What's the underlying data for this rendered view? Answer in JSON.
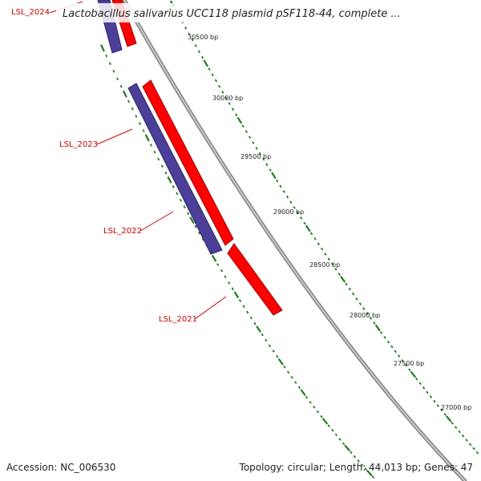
{
  "title": "Lactobacillus salivarius UCC118 plasmid pSF118-44, complete ...",
  "footer": {
    "accession": "Accession: NC_006530",
    "summary": "Topology: circular; Length: 44,013 bp; Genes: 47"
  },
  "colors": {
    "forward_gene": "#ff0000",
    "reverse_gene": "#4b3f99",
    "tick": "#1f7a1f",
    "backbone": "#8a8a8a",
    "gene_label": "#cc0000"
  },
  "scale_ticks": [
    {
      "label": "30500 bp",
      "major": true
    },
    {
      "label": "30000 bp",
      "major": true
    },
    {
      "label": "29500 bp",
      "major": true
    },
    {
      "label": "29000 bp",
      "major": true
    },
    {
      "label": "28500 bp",
      "major": true
    },
    {
      "label": "28000 bp",
      "major": true
    },
    {
      "label": "27500 bp",
      "major": true
    },
    {
      "label": "27000 bp",
      "major": true
    }
  ],
  "genes": [
    {
      "label": "LSL_2024",
      "strand": "reverse"
    },
    {
      "label": "LSL_2023",
      "strand": "reverse"
    },
    {
      "label": "LSL_2022",
      "strand": "reverse"
    },
    {
      "label": "LSL_2021",
      "strand": "forward"
    }
  ]
}
